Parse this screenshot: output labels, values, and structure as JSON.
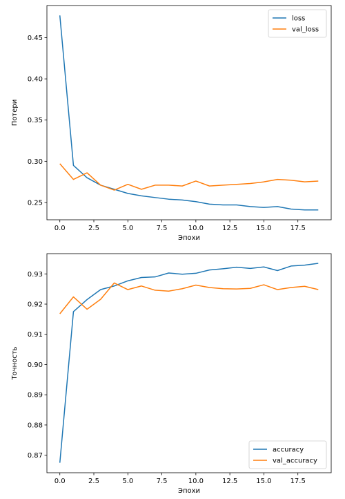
{
  "chart_data": [
    {
      "type": "line",
      "xlabel": "Эпохи",
      "ylabel": "Потери",
      "xlim": [
        -0.95,
        19.95
      ],
      "ylim": [
        0.229,
        0.489
      ],
      "xticks": [
        0.0,
        2.5,
        5.0,
        7.5,
        10.0,
        12.5,
        15.0,
        17.5
      ],
      "xtick_labels": [
        "0.0",
        "2.5",
        "5.0",
        "7.5",
        "10.0",
        "12.5",
        "15.0",
        "17.5"
      ],
      "yticks": [
        0.25,
        0.3,
        0.35,
        0.4,
        0.45
      ],
      "ytick_labels": [
        "0.25",
        "0.30",
        "0.35",
        "0.40",
        "0.45"
      ],
      "grid": false,
      "legend_position": "top-right",
      "x": [
        0,
        1,
        2,
        3,
        4,
        5,
        6,
        7,
        8,
        9,
        10,
        11,
        12,
        13,
        14,
        15,
        16,
        17,
        18,
        19
      ],
      "series": [
        {
          "name": "loss",
          "color": "#1f77b4",
          "values": [
            0.477,
            0.295,
            0.28,
            0.271,
            0.266,
            0.261,
            0.258,
            0.256,
            0.254,
            0.253,
            0.251,
            0.248,
            0.247,
            0.247,
            0.245,
            0.244,
            0.245,
            0.242,
            0.241,
            0.241
          ]
        },
        {
          "name": "val_loss",
          "color": "#ff7f0e",
          "values": [
            0.297,
            0.278,
            0.286,
            0.271,
            0.265,
            0.272,
            0.266,
            0.271,
            0.271,
            0.27,
            0.276,
            0.27,
            0.271,
            0.272,
            0.273,
            0.275,
            0.278,
            0.277,
            0.275,
            0.276
          ]
        }
      ]
    },
    {
      "type": "line",
      "xlabel": "Эпохи",
      "ylabel": "Точность",
      "xlim": [
        -0.95,
        19.95
      ],
      "ylim": [
        0.8642,
        0.9367
      ],
      "xticks": [
        0.0,
        2.5,
        5.0,
        7.5,
        10.0,
        12.5,
        15.0,
        17.5
      ],
      "xtick_labels": [
        "0.0",
        "2.5",
        "5.0",
        "7.5",
        "10.0",
        "12.5",
        "15.0",
        "17.5"
      ],
      "yticks": [
        0.87,
        0.88,
        0.89,
        0.9,
        0.91,
        0.92,
        0.93
      ],
      "ytick_labels": [
        "0.87",
        "0.88",
        "0.89",
        "0.90",
        "0.91",
        "0.92",
        "0.93"
      ],
      "grid": false,
      "legend_position": "bottom-right",
      "x": [
        0,
        1,
        2,
        3,
        4,
        5,
        6,
        7,
        8,
        9,
        10,
        11,
        12,
        13,
        14,
        15,
        16,
        17,
        18,
        19
      ],
      "series": [
        {
          "name": "accuracy",
          "color": "#1f77b4",
          "values": [
            0.8675,
            0.9175,
            0.9215,
            0.9248,
            0.926,
            0.9277,
            0.9288,
            0.929,
            0.9303,
            0.9299,
            0.9302,
            0.9313,
            0.9317,
            0.9322,
            0.9318,
            0.9323,
            0.9311,
            0.9326,
            0.9329,
            0.9335
          ]
        },
        {
          "name": "val_accuracy",
          "color": "#ff7f0e",
          "values": [
            0.9168,
            0.9224,
            0.9183,
            0.9216,
            0.927,
            0.9248,
            0.926,
            0.9246,
            0.9243,
            0.9251,
            0.9263,
            0.9255,
            0.9251,
            0.925,
            0.9252,
            0.9264,
            0.9248,
            0.9255,
            0.9259,
            0.9248
          ]
        }
      ]
    }
  ]
}
